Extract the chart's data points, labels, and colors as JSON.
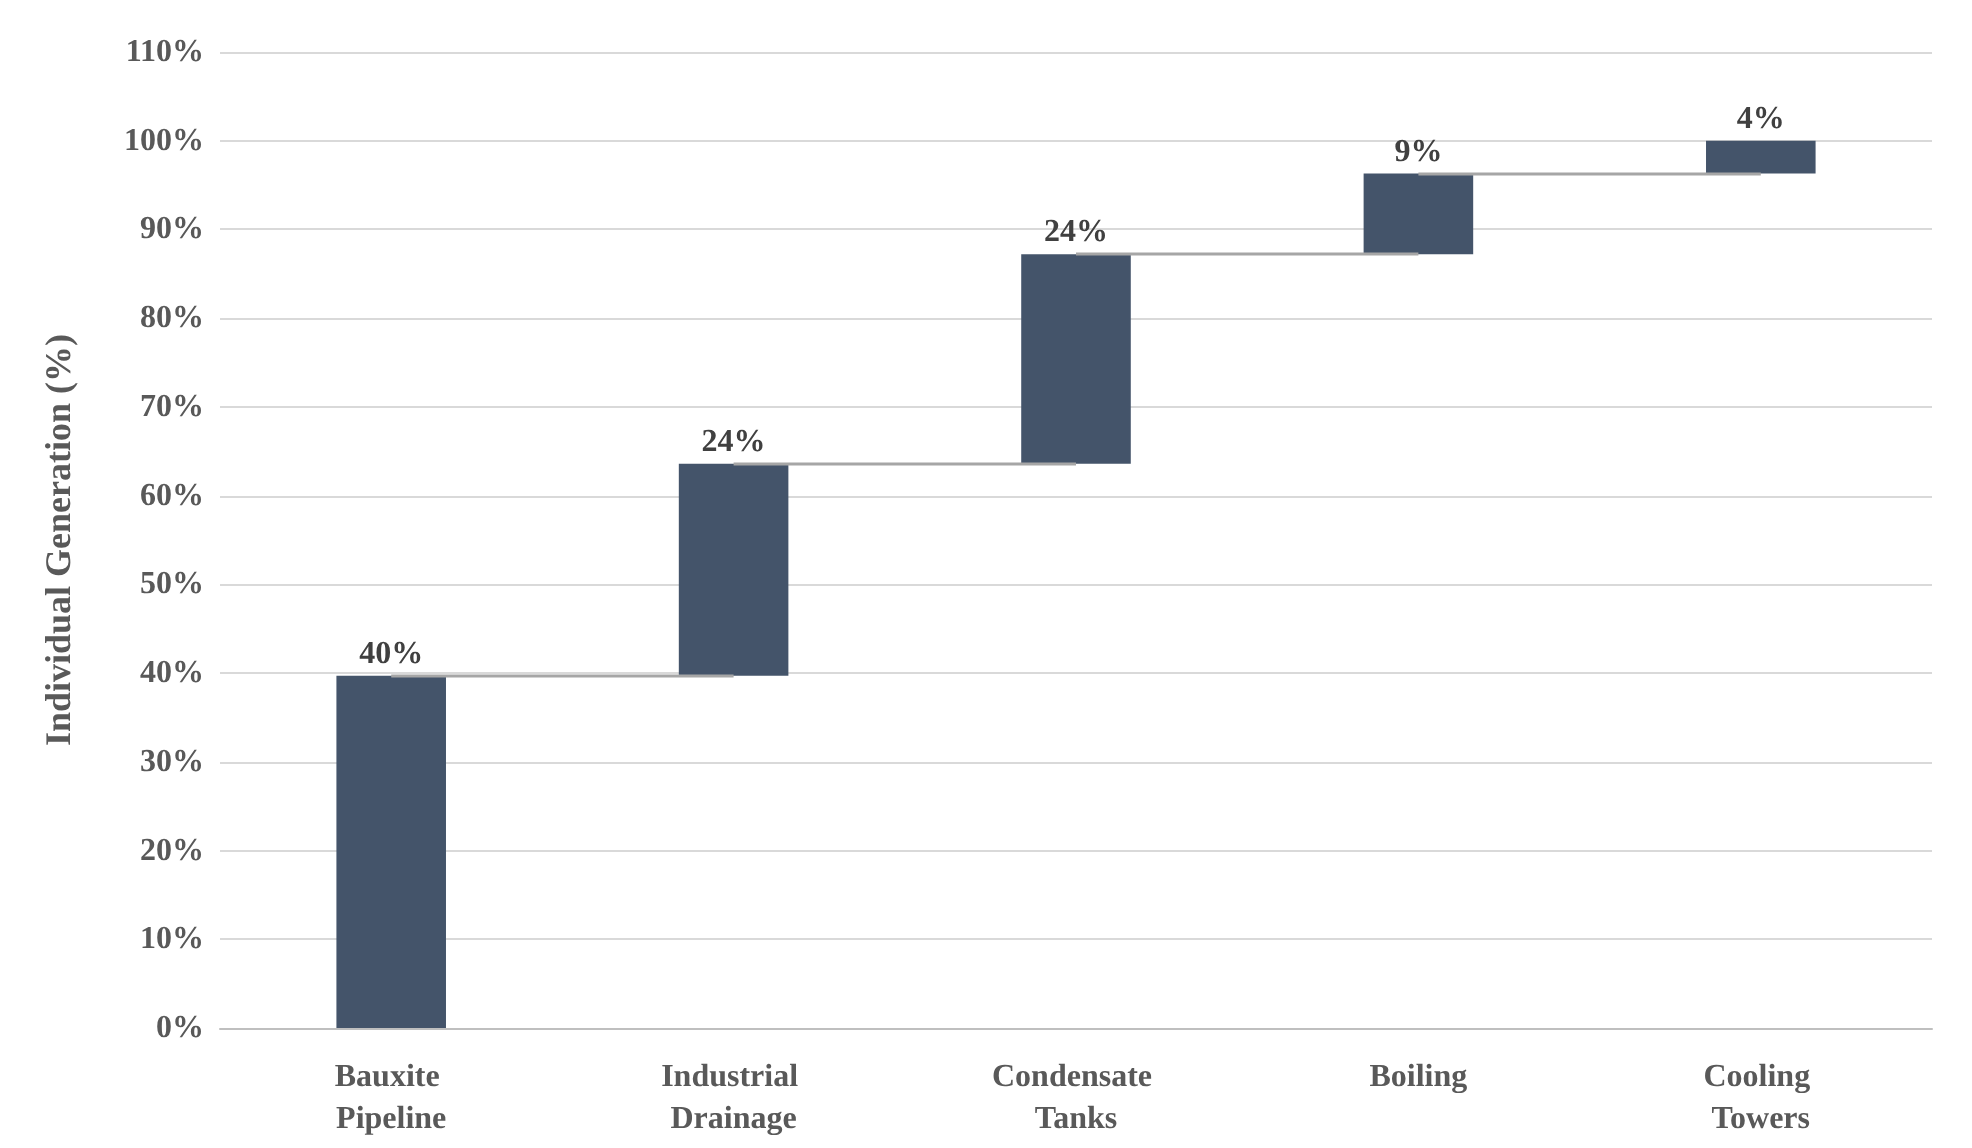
{
  "chart_data": {
    "type": "bar",
    "ylabel": "Individual Generation (%)",
    "categories": [
      "Bauxite Pipeline",
      "Industrial Drainage",
      "Condensate Tanks",
      "Boiling",
      "Cooling Towers"
    ],
    "values": [
      39.7,
      23.9,
      23.6,
      9.1,
      3.7
    ],
    "base": [
      0,
      39.7,
      63.6,
      87.2,
      96.3
    ],
    "value_labels": [
      "40%",
      "24%",
      "24%",
      "9%",
      "4%"
    ],
    "color": "#44546a",
    "ylim": [
      0,
      110
    ],
    "yticks": [
      {
        "value": 0,
        "label": "0%"
      },
      {
        "value": 10,
        "label": "10%"
      },
      {
        "value": 20,
        "label": "20%"
      },
      {
        "value": 30,
        "label": "30%"
      },
      {
        "value": 40,
        "label": "40%"
      },
      {
        "value": 50,
        "label": "50%"
      },
      {
        "value": 60,
        "label": "60%"
      },
      {
        "value": 70,
        "label": "70%"
      },
      {
        "value": 80,
        "label": "80%"
      },
      {
        "value": 90,
        "label": "90%"
      },
      {
        "value": 100,
        "label": "100%"
      },
      {
        "value": 110,
        "label": "110%"
      }
    ],
    "grid": "y"
  }
}
